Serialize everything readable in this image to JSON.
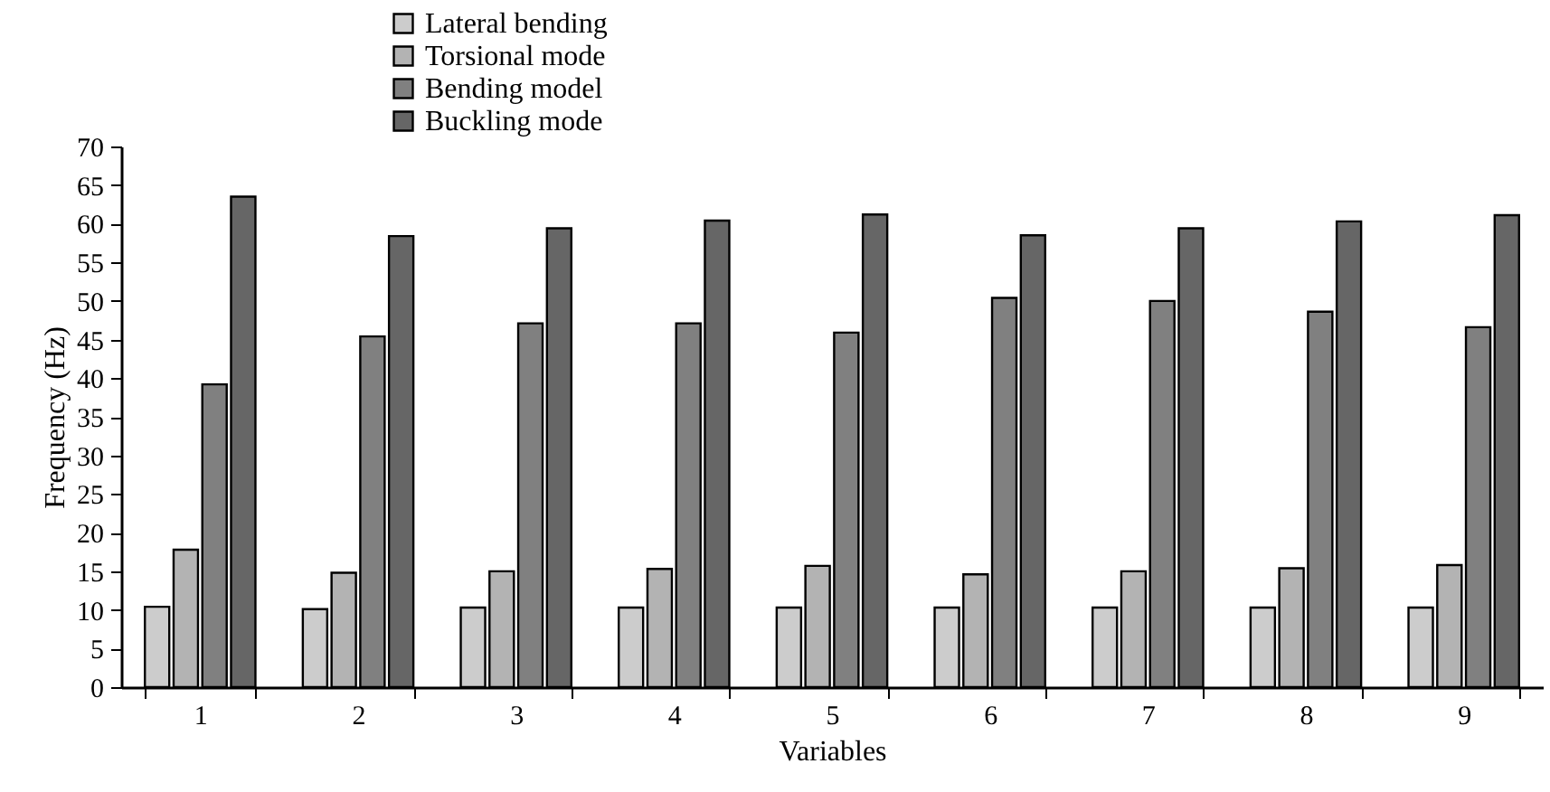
{
  "chart_data": {
    "type": "bar",
    "xlabel": "Variables",
    "ylabel": "Frequency (Hz)",
    "categories": [
      "1",
      "2",
      "3",
      "4",
      "5",
      "6",
      "7",
      "8",
      "9"
    ],
    "series": [
      {
        "name": "Lateral bending",
        "color": "#cccccc",
        "values": [
          10.4,
          10.1,
          10.3,
          10.3,
          10.3,
          10.3,
          10.3,
          10.3,
          10.3
        ]
      },
      {
        "name": "Torsional mode",
        "color": "#b3b3b3",
        "values": [
          17.8,
          14.8,
          15,
          15.3,
          15.7,
          14.6,
          15,
          15.4,
          15.8
        ]
      },
      {
        "name": "Bending model",
        "color": "#808080",
        "values": [
          39.2,
          45.4,
          47.1,
          47.1,
          45.9,
          50.4,
          50,
          48.6,
          46.6
        ]
      },
      {
        "name": "Buckling mode",
        "color": "#666666",
        "values": [
          63.5,
          58.4,
          59.4,
          60.4,
          61.2,
          58.5,
          59.4,
          60.3,
          61.1
        ]
      }
    ],
    "ylim": [
      0,
      70
    ],
    "yticks": [
      0,
      5,
      10,
      15,
      20,
      25,
      30,
      35,
      40,
      45,
      50,
      55,
      60,
      65,
      70
    ],
    "grid": false,
    "legend": "top"
  }
}
